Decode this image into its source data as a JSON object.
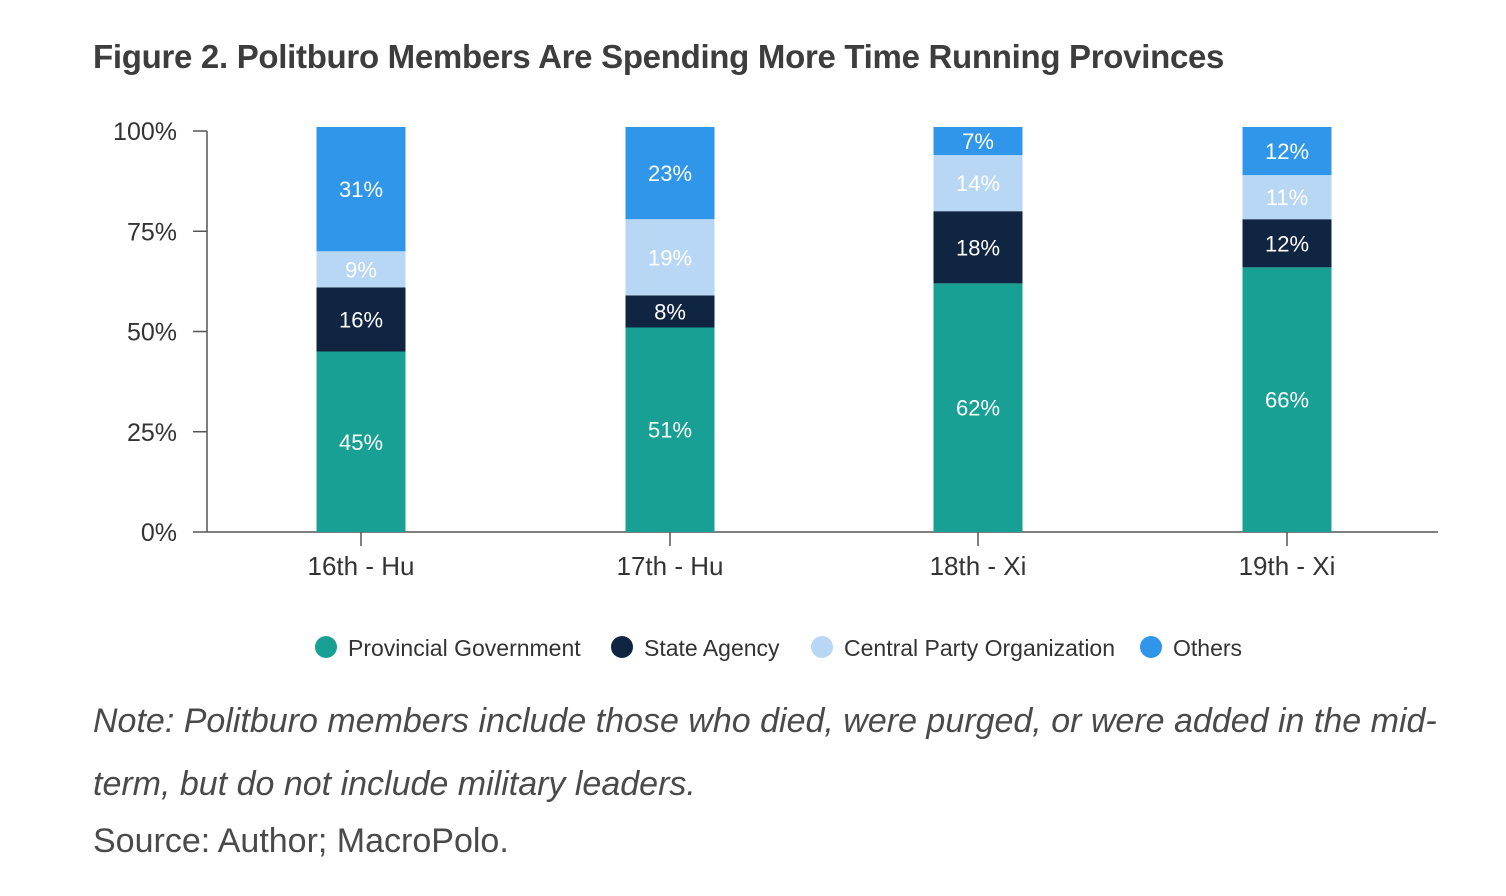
{
  "title": "Figure 2. Politburo Members Are Spending More Time Running Provinces",
  "note": "Note: Politburo members include those who died, were purged, or were added in the mid-term, but do not include military leaders.",
  "source": "Source: Author; MacroPolo.",
  "chart_data": {
    "type": "bar",
    "stacked": true,
    "categories": [
      "16th - Hu",
      "17th - Hu",
      "18th - Xi",
      "19th - Xi"
    ],
    "yticks": [
      "0%",
      "25%",
      "50%",
      "75%",
      "100%"
    ],
    "ylim": [
      0,
      100
    ],
    "legend_position": "bottom",
    "series": [
      {
        "name": "Provincial Government",
        "color": "#17a093",
        "values": [
          45,
          51,
          62,
          66
        ],
        "labels": [
          "45%",
          "51%",
          "62%",
          "66%"
        ]
      },
      {
        "name": "State Agency",
        "color": "#0f2541",
        "values": [
          16,
          8,
          18,
          12
        ],
        "labels": [
          "16%",
          "8%",
          "18%",
          "12%"
        ]
      },
      {
        "name": "Central Party Organization",
        "color": "#b8d7f4",
        "values": [
          9,
          19,
          14,
          11
        ],
        "labels": [
          "9%",
          "19%",
          "14%",
          "11%"
        ]
      },
      {
        "name": "Others",
        "color": "#2f96ea",
        "values": [
          31,
          23,
          7,
          12
        ],
        "labels": [
          "31%",
          "23%",
          "7%",
          "12%"
        ]
      }
    ]
  }
}
